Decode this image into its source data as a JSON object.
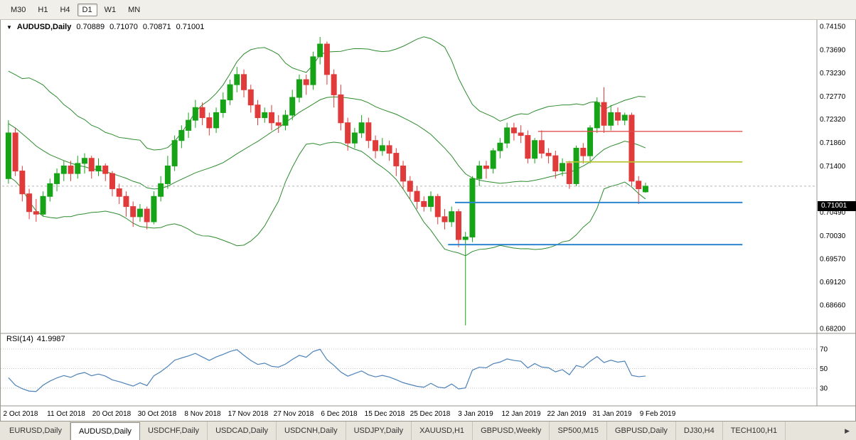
{
  "toolbar": {
    "timeframes": [
      {
        "label": "M30",
        "active": false
      },
      {
        "label": "H1",
        "active": false
      },
      {
        "label": "H4",
        "active": false
      },
      {
        "label": "D1",
        "active": true
      },
      {
        "label": "W1",
        "active": false
      },
      {
        "label": "MN",
        "active": false
      }
    ]
  },
  "chart": {
    "collapse_icon": "▼",
    "symbol_label": "AUDUSD,Daily",
    "ohlc": {
      "open": "0.70889",
      "high": "0.71070",
      "low": "0.70871",
      "close": "0.71001"
    },
    "current_price": "0.71001",
    "current_price_value": 0.71001
  },
  "rsi": {
    "name": "RSI(14)",
    "value_text": "41.9987",
    "axis_labels": [
      "70",
      "50",
      "30"
    ],
    "levels": [
      70,
      50,
      30
    ]
  },
  "chart_data": {
    "type": "candlestick",
    "title": "AUDUSD,Daily",
    "price_axis": {
      "min": 0.682,
      "max": 0.7415,
      "labels": [
        "0.74150",
        "0.73690",
        "0.73230",
        "0.72770",
        "0.72320",
        "0.71860",
        "0.71400",
        "0.70940",
        "0.70490",
        "0.70030",
        "0.69570",
        "0.69120",
        "0.68660",
        "0.68200"
      ]
    },
    "x_labels": [
      "2 Oct 2018",
      "11 Oct 2018",
      "20 Oct 2018",
      "30 Oct 2018",
      "8 Nov 2018",
      "17 Nov 2018",
      "27 Nov 2018",
      "6 Dec 2018",
      "15 Dec 2018",
      "25 Dec 2018",
      "3 Jan 2019",
      "12 Jan 2019",
      "22 Jan 2019",
      "31 Jan 2019",
      "9 Feb 2019"
    ],
    "colors": {
      "bull": "#17a317",
      "bear": "#e03a3a",
      "band": "#2e8b2e",
      "rsi_line": "#4d82b8",
      "axis_text": "#000000",
      "separator": "#98958d",
      "level_dots": "#c8c8c8",
      "bid_line": "#b5b5b5"
    },
    "indicators": {
      "bollinger": {
        "period": 20,
        "deviation": 2
      },
      "rsi": {
        "period": 14,
        "value": 41.9987
      }
    },
    "lines": [
      {
        "name": "resistance-line-red",
        "color": "#e05050",
        "price": 0.7208,
        "from_idx": 77,
        "to_idx": 106.5,
        "width": 1.4
      },
      {
        "name": "resistance-line-olive",
        "color": "#b5c531",
        "price": 0.7148,
        "from_idx": 81,
        "to_idx": 106.5,
        "width": 1.8
      },
      {
        "name": "support-line-blue-upper",
        "color": "#2e86d0",
        "price": 0.7068,
        "from_idx": 65,
        "to_idx": 106.5,
        "width": 2
      },
      {
        "name": "support-line-blue-lower",
        "color": "#2e86d0",
        "price": 0.6985,
        "from_idx": 64,
        "to_idx": 106.5,
        "width": 2
      }
    ],
    "pre_closes": [
      0.733,
      0.73,
      0.7315,
      0.728,
      0.7295,
      0.726,
      0.727,
      0.724,
      0.7255,
      0.7225,
      0.7235,
      0.7205,
      0.7215,
      0.7185,
      0.7195,
      0.7165,
      0.7175,
      0.715,
      0.716,
      0.7135
    ],
    "candles": [
      [
        0.7115,
        0.723,
        0.7105,
        0.7205
      ],
      [
        0.7205,
        0.7215,
        0.712,
        0.713
      ],
      [
        0.713,
        0.714,
        0.707,
        0.7085
      ],
      [
        0.7085,
        0.7095,
        0.7035,
        0.705
      ],
      [
        0.705,
        0.7075,
        0.703,
        0.7045
      ],
      [
        0.7045,
        0.709,
        0.704,
        0.708
      ],
      [
        0.708,
        0.7115,
        0.707,
        0.7105
      ],
      [
        0.7105,
        0.7135,
        0.709,
        0.7125
      ],
      [
        0.7125,
        0.715,
        0.711,
        0.714
      ],
      [
        0.714,
        0.715,
        0.711,
        0.7125
      ],
      [
        0.7125,
        0.716,
        0.7115,
        0.7145
      ],
      [
        0.7145,
        0.7165,
        0.7125,
        0.7155
      ],
      [
        0.7155,
        0.716,
        0.7115,
        0.713
      ],
      [
        0.713,
        0.7155,
        0.712,
        0.714
      ],
      [
        0.714,
        0.7145,
        0.711,
        0.7125
      ],
      [
        0.7125,
        0.713,
        0.708,
        0.7095
      ],
      [
        0.7095,
        0.7105,
        0.7065,
        0.708
      ],
      [
        0.708,
        0.709,
        0.704,
        0.706
      ],
      [
        0.706,
        0.707,
        0.702,
        0.704
      ],
      [
        0.704,
        0.7065,
        0.703,
        0.7055
      ],
      [
        0.7055,
        0.706,
        0.7015,
        0.703
      ],
      [
        0.703,
        0.709,
        0.7025,
        0.708
      ],
      [
        0.708,
        0.712,
        0.707,
        0.7105
      ],
      [
        0.7105,
        0.716,
        0.7095,
        0.714
      ],
      [
        0.714,
        0.72,
        0.713,
        0.719
      ],
      [
        0.719,
        0.722,
        0.7175,
        0.721
      ],
      [
        0.721,
        0.7245,
        0.7195,
        0.723
      ],
      [
        0.723,
        0.727,
        0.7215,
        0.7255
      ],
      [
        0.7255,
        0.7265,
        0.722,
        0.7235
      ],
      [
        0.7235,
        0.7245,
        0.72,
        0.7215
      ],
      [
        0.7215,
        0.7255,
        0.7205,
        0.7245
      ],
      [
        0.7245,
        0.7285,
        0.7235,
        0.727
      ],
      [
        0.727,
        0.731,
        0.726,
        0.73
      ],
      [
        0.73,
        0.7335,
        0.7285,
        0.732
      ],
      [
        0.732,
        0.733,
        0.7275,
        0.729
      ],
      [
        0.729,
        0.73,
        0.7245,
        0.726
      ],
      [
        0.726,
        0.727,
        0.722,
        0.7235
      ],
      [
        0.7235,
        0.7255,
        0.7225,
        0.7245
      ],
      [
        0.7245,
        0.726,
        0.721,
        0.7225
      ],
      [
        0.7225,
        0.724,
        0.7205,
        0.722
      ],
      [
        0.722,
        0.725,
        0.721,
        0.724
      ],
      [
        0.724,
        0.729,
        0.723,
        0.7275
      ],
      [
        0.7275,
        0.732,
        0.7265,
        0.731
      ],
      [
        0.731,
        0.732,
        0.728,
        0.73
      ],
      [
        0.73,
        0.7365,
        0.729,
        0.7355
      ],
      [
        0.7355,
        0.7394,
        0.734,
        0.738
      ],
      [
        0.738,
        0.7385,
        0.73,
        0.732
      ],
      [
        0.732,
        0.733,
        0.7255,
        0.728
      ],
      [
        0.728,
        0.73,
        0.721,
        0.7225
      ],
      [
        0.7225,
        0.7235,
        0.717,
        0.7185
      ],
      [
        0.7185,
        0.7215,
        0.7175,
        0.7205
      ],
      [
        0.7205,
        0.724,
        0.7195,
        0.7225
      ],
      [
        0.7225,
        0.7235,
        0.7175,
        0.719
      ],
      [
        0.719,
        0.72,
        0.7155,
        0.717
      ],
      [
        0.717,
        0.7195,
        0.716,
        0.718
      ],
      [
        0.718,
        0.719,
        0.715,
        0.7165
      ],
      [
        0.7165,
        0.7175,
        0.712,
        0.714
      ],
      [
        0.714,
        0.715,
        0.7095,
        0.711
      ],
      [
        0.711,
        0.712,
        0.7075,
        0.709
      ],
      [
        0.709,
        0.71,
        0.7055,
        0.707
      ],
      [
        0.707,
        0.708,
        0.705,
        0.706
      ],
      [
        0.706,
        0.709,
        0.705,
        0.708
      ],
      [
        0.708,
        0.7085,
        0.7025,
        0.704
      ],
      [
        0.704,
        0.7055,
        0.7015,
        0.703
      ],
      [
        0.703,
        0.706,
        0.702,
        0.705
      ],
      [
        0.705,
        0.7055,
        0.698,
        0.6995
      ],
      [
        0.6995,
        0.701,
        0.6826,
        0.7
      ],
      [
        0.7,
        0.712,
        0.699,
        0.7115
      ],
      [
        0.7115,
        0.715,
        0.71,
        0.714
      ],
      [
        0.714,
        0.715,
        0.7115,
        0.7135
      ],
      [
        0.7135,
        0.7175,
        0.7125,
        0.717
      ],
      [
        0.717,
        0.7195,
        0.7155,
        0.7185
      ],
      [
        0.7185,
        0.7225,
        0.7175,
        0.7215
      ],
      [
        0.7215,
        0.7225,
        0.719,
        0.7205
      ],
      [
        0.7205,
        0.722,
        0.7185,
        0.72
      ],
      [
        0.72,
        0.721,
        0.7145,
        0.7155
      ],
      [
        0.7155,
        0.7195,
        0.7145,
        0.719
      ],
      [
        0.719,
        0.721,
        0.7155,
        0.7165
      ],
      [
        0.7165,
        0.7175,
        0.7145,
        0.716
      ],
      [
        0.716,
        0.717,
        0.7115,
        0.713
      ],
      [
        0.713,
        0.7155,
        0.712,
        0.7145
      ],
      [
        0.7145,
        0.715,
        0.7095,
        0.7105
      ],
      [
        0.7105,
        0.718,
        0.71,
        0.7175
      ],
      [
        0.7175,
        0.7185,
        0.7145,
        0.716
      ],
      [
        0.716,
        0.722,
        0.7145,
        0.7215
      ],
      [
        0.7215,
        0.7275,
        0.7205,
        0.7265
      ],
      [
        0.7265,
        0.7295,
        0.7205,
        0.722
      ],
      [
        0.722,
        0.726,
        0.721,
        0.7245
      ],
      [
        0.7245,
        0.7255,
        0.722,
        0.723
      ],
      [
        0.723,
        0.7245,
        0.722,
        0.724
      ],
      [
        0.724,
        0.7245,
        0.71,
        0.711
      ],
      [
        0.711,
        0.712,
        0.7065,
        0.7095
      ],
      [
        0.70889,
        0.7107,
        0.70871,
        0.71001
      ]
    ]
  },
  "tabbar": {
    "scroll_right_icon": "▶",
    "tabs": [
      {
        "label": "EURUSD,Daily",
        "active": false
      },
      {
        "label": "AUDUSD,Daily",
        "active": true
      },
      {
        "label": "USDCHF,Daily",
        "active": false
      },
      {
        "label": "USDCAD,Daily",
        "active": false
      },
      {
        "label": "USDCNH,Daily",
        "active": false
      },
      {
        "label": "USDJPY,Daily",
        "active": false
      },
      {
        "label": "XAUUSD,H1",
        "active": false
      },
      {
        "label": "GBPUSD,Weekly",
        "active": false
      },
      {
        "label": "SP500,M15",
        "active": false
      },
      {
        "label": "GBPUSD,Daily",
        "active": false
      },
      {
        "label": "DJ30,H4",
        "active": false
      },
      {
        "label": "TECH100,H1",
        "active": false
      }
    ]
  }
}
